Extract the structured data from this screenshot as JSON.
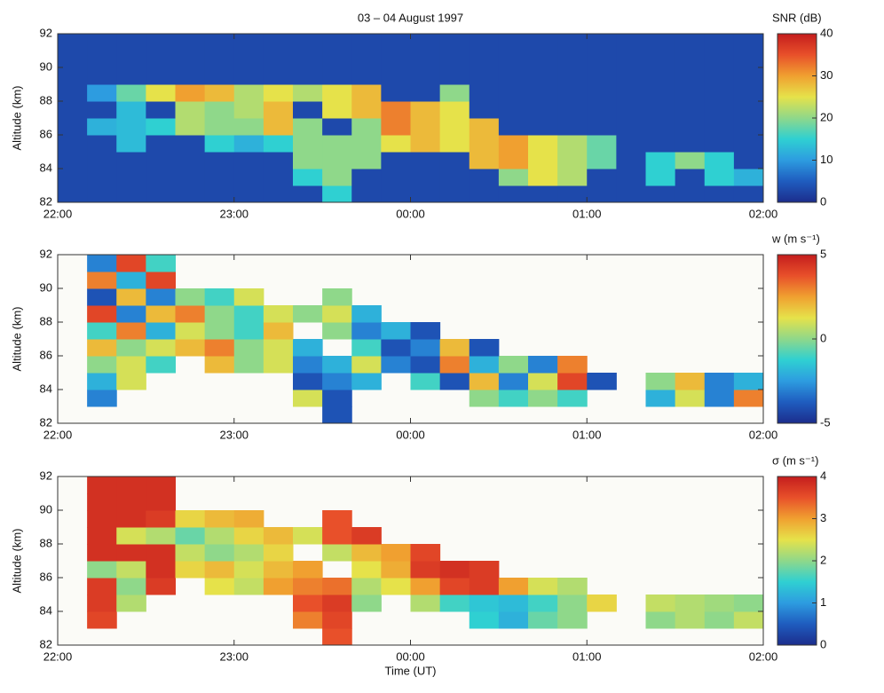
{
  "chart_data": [
    {
      "type": "heatmap",
      "title": "03 – 04 August 1997",
      "y_label": "Altitude (km)",
      "x": [
        0,
        10,
        20,
        30,
        40,
        50,
        60,
        70,
        80,
        90,
        100,
        110,
        120,
        130,
        140,
        150,
        160,
        170,
        180,
        190,
        200,
        210,
        220,
        230
      ],
      "xlim": [
        0,
        240
      ],
      "xticks": [
        {
          "value": 0,
          "label": "22:00"
        },
        {
          "value": 60,
          "label": "23:00"
        },
        {
          "value": 120,
          "label": "00:00"
        },
        {
          "value": 180,
          "label": "01:00"
        },
        {
          "value": 240,
          "label": "02:00"
        }
      ],
      "y": [
        82,
        83,
        84,
        85,
        86,
        87,
        88,
        89,
        90,
        91
      ],
      "ylim": [
        82,
        92
      ],
      "yticks": [
        82,
        84,
        86,
        88,
        90,
        92
      ],
      "z": [
        [
          3,
          3,
          3,
          3,
          3,
          3,
          3,
          3,
          3,
          15,
          3,
          3,
          3,
          3,
          3,
          3,
          3,
          3,
          3,
          3,
          3,
          3,
          3,
          3
        ],
        [
          3,
          3,
          3,
          3,
          3,
          3,
          3,
          3,
          15,
          20,
          3,
          3,
          3,
          3,
          3,
          20,
          25,
          22,
          3,
          3,
          15,
          3,
          15,
          12
        ],
        [
          3,
          3,
          3,
          3,
          3,
          3,
          3,
          3,
          20,
          20,
          20,
          3,
          3,
          3,
          28,
          30,
          25,
          22,
          18,
          3,
          15,
          20,
          15,
          3
        ],
        [
          3,
          3,
          13,
          3,
          3,
          15,
          12,
          15,
          20,
          20,
          20,
          25,
          28,
          25,
          28,
          30,
          25,
          22,
          18,
          3,
          3,
          3,
          3,
          3
        ],
        [
          3,
          12,
          13,
          15,
          22,
          20,
          20,
          28,
          20,
          3,
          20,
          32,
          28,
          25,
          28,
          3,
          3,
          3,
          3,
          3,
          3,
          3,
          3,
          3
        ],
        [
          3,
          3,
          13,
          3,
          22,
          20,
          22,
          28,
          3,
          25,
          28,
          32,
          28,
          25,
          3,
          3,
          3,
          3,
          3,
          3,
          3,
          3,
          3,
          3
        ],
        [
          3,
          10,
          18,
          25,
          30,
          28,
          22,
          25,
          22,
          25,
          28,
          3,
          3,
          20,
          3,
          3,
          3,
          3,
          3,
          3,
          3,
          3,
          3,
          3
        ],
        [
          3,
          3,
          3,
          3,
          3,
          3,
          3,
          3,
          3,
          3,
          3,
          3,
          3,
          3,
          3,
          3,
          3,
          3,
          3,
          3,
          3,
          3,
          3,
          3
        ],
        [
          3,
          3,
          3,
          3,
          3,
          3,
          3,
          3,
          3,
          3,
          3,
          3,
          3,
          3,
          3,
          3,
          3,
          3,
          3,
          3,
          3,
          3,
          3,
          3
        ],
        [
          3,
          3,
          3,
          3,
          3,
          3,
          3,
          3,
          3,
          3,
          3,
          3,
          3,
          3,
          3,
          3,
          3,
          3,
          3,
          3,
          3,
          3,
          3,
          3
        ]
      ],
      "colorbar": {
        "label": "SNR (dB)",
        "zlim": [
          0,
          40
        ],
        "zticks": [
          0,
          10,
          20,
          30,
          40
        ]
      },
      "colormap": [
        "#1c2d8c",
        "#1f5cbf",
        "#2d9ce0",
        "#2fd0d2",
        "#8fd88a",
        "#e6e24a",
        "#f0a030",
        "#e8502a",
        "#c41d1d"
      ]
    },
    {
      "type": "heatmap",
      "y_label": "Altitude (km)",
      "x": [
        0,
        10,
        20,
        30,
        40,
        50,
        60,
        70,
        80,
        90,
        100,
        110,
        120,
        130,
        140,
        150,
        160,
        170,
        180,
        190,
        200,
        210,
        220,
        230
      ],
      "xlim": [
        0,
        240
      ],
      "xticks": [
        {
          "value": 0,
          "label": "22:00"
        },
        {
          "value": 60,
          "label": "23:00"
        },
        {
          "value": 120,
          "label": "00:00"
        },
        {
          "value": 180,
          "label": "01:00"
        },
        {
          "value": 240,
          "label": "02:00"
        }
      ],
      "y": [
        82,
        83,
        84,
        85,
        86,
        87,
        88,
        89,
        90,
        91
      ],
      "ylim": [
        82,
        92
      ],
      "yticks": [
        82,
        84,
        86,
        88,
        90,
        92
      ],
      "z": [
        [
          null,
          null,
          null,
          null,
          null,
          null,
          null,
          null,
          null,
          -4,
          null,
          null,
          null,
          null,
          null,
          null,
          null,
          null,
          null,
          null,
          null,
          null,
          null,
          null
        ],
        [
          null,
          -3,
          null,
          null,
          null,
          null,
          null,
          null,
          1,
          -4,
          null,
          null,
          null,
          null,
          0,
          -1,
          0,
          -1,
          null,
          null,
          -2,
          1,
          -3,
          3
        ],
        [
          null,
          -2,
          1,
          null,
          null,
          null,
          null,
          null,
          -4,
          -3,
          -2,
          null,
          -1,
          -4,
          2,
          -3,
          1,
          4,
          -4,
          null,
          0,
          2,
          -3,
          -2
        ],
        [
          null,
          0,
          1,
          -1,
          null,
          2,
          0,
          1,
          -3,
          -2,
          1,
          -3,
          -4,
          3,
          -2,
          0,
          -3,
          3,
          null,
          null,
          null,
          null,
          null,
          null
        ],
        [
          null,
          2,
          0,
          1,
          2,
          3,
          0,
          1,
          -2,
          null,
          -1,
          -4,
          -3,
          2,
          -4,
          null,
          null,
          null,
          null,
          null,
          null,
          null,
          null,
          null
        ],
        [
          null,
          -1,
          3,
          -2,
          1,
          0,
          -1,
          2,
          null,
          0,
          -3,
          -2,
          -4,
          null,
          null,
          null,
          null,
          null,
          null,
          null,
          null,
          null,
          null,
          null
        ],
        [
          null,
          4,
          -3,
          2,
          3,
          0,
          -1,
          1,
          0,
          1,
          -2,
          null,
          null,
          null,
          null,
          null,
          null,
          null,
          null,
          null,
          null,
          null,
          null,
          null
        ],
        [
          null,
          -4,
          2,
          -3,
          0,
          -1,
          1,
          null,
          null,
          0,
          null,
          null,
          null,
          null,
          null,
          null,
          null,
          null,
          null,
          null,
          null,
          null,
          null,
          null
        ],
        [
          null,
          3,
          -2,
          4,
          null,
          null,
          null,
          null,
          null,
          null,
          null,
          null,
          null,
          null,
          null,
          null,
          null,
          null,
          null,
          null,
          null,
          null,
          null,
          null
        ],
        [
          null,
          -3,
          4,
          -1,
          null,
          null,
          null,
          null,
          null,
          null,
          null,
          null,
          null,
          null,
          null,
          null,
          null,
          null,
          null,
          null,
          null,
          null,
          null,
          null
        ]
      ],
      "colorbar": {
        "label": "w (m s⁻¹)",
        "zlim": [
          -5,
          5
        ],
        "zticks": [
          -5,
          0,
          5
        ]
      },
      "colormap": [
        "#1c2d8c",
        "#1f5cbf",
        "#2d9ce0",
        "#2fd0d2",
        "#8fd88a",
        "#e6e24a",
        "#f0a030",
        "#e8502a",
        "#c41d1d"
      ]
    },
    {
      "type": "heatmap",
      "y_label": "Altitude (km)",
      "x_label": "Time (UT)",
      "x": [
        0,
        10,
        20,
        30,
        40,
        50,
        60,
        70,
        80,
        90,
        100,
        110,
        120,
        130,
        140,
        150,
        160,
        170,
        180,
        190,
        200,
        210,
        220,
        230
      ],
      "xlim": [
        0,
        240
      ],
      "xticks": [
        {
          "value": 0,
          "label": "22:00"
        },
        {
          "value": 60,
          "label": "23:00"
        },
        {
          "value": 120,
          "label": "00:00"
        },
        {
          "value": 180,
          "label": "01:00"
        },
        {
          "value": 240,
          "label": "02:00"
        }
      ],
      "y": [
        82,
        83,
        84,
        85,
        86,
        87,
        88,
        89,
        90,
        91
      ],
      "ylim": [
        82,
        92
      ],
      "yticks": [
        82,
        84,
        86,
        88,
        90,
        92
      ],
      "z": [
        [
          null,
          null,
          null,
          null,
          null,
          null,
          null,
          null,
          null,
          3.5,
          null,
          null,
          null,
          null,
          null,
          null,
          null,
          null,
          null,
          null,
          null,
          null,
          null,
          null
        ],
        [
          null,
          3.6,
          null,
          null,
          null,
          null,
          null,
          null,
          3.2,
          3.6,
          null,
          null,
          null,
          null,
          1.5,
          1.2,
          1.8,
          2,
          null,
          null,
          2,
          2.2,
          2,
          2.3
        ],
        [
          null,
          3.7,
          2.2,
          null,
          null,
          null,
          null,
          null,
          3.5,
          3.7,
          2,
          null,
          2.2,
          1.6,
          1.4,
          1.3,
          1.6,
          2,
          2.6,
          null,
          2.3,
          2.2,
          2.1,
          2
        ],
        [
          null,
          3.7,
          2,
          3.7,
          null,
          2.5,
          2.3,
          3,
          3.2,
          3.3,
          2.2,
          2.5,
          3,
          3.6,
          3.7,
          3,
          2.4,
          2.2,
          null,
          null,
          null,
          null,
          null,
          null
        ],
        [
          null,
          2,
          2.3,
          3.8,
          2.6,
          2.8,
          2.4,
          2.8,
          3,
          null,
          2.5,
          2.9,
          3.7,
          3.8,
          3.7,
          null,
          null,
          null,
          null,
          null,
          null,
          null,
          null,
          null
        ],
        [
          null,
          3.8,
          3.8,
          3.8,
          2.3,
          2,
          2.2,
          2.6,
          null,
          2.3,
          2.8,
          3,
          3.6,
          null,
          null,
          null,
          null,
          null,
          null,
          null,
          null,
          null,
          null,
          null
        ],
        [
          null,
          3.8,
          2.4,
          2.2,
          1.8,
          2.2,
          2.6,
          2.8,
          2.4,
          3.5,
          3.7,
          null,
          null,
          null,
          null,
          null,
          null,
          null,
          null,
          null,
          null,
          null,
          null,
          null
        ],
        [
          null,
          3.8,
          3.8,
          3.7,
          2.6,
          2.8,
          2.9,
          null,
          null,
          3.5,
          null,
          null,
          null,
          null,
          null,
          null,
          null,
          null,
          null,
          null,
          null,
          null,
          null,
          null
        ],
        [
          null,
          3.8,
          3.8,
          3.8,
          null,
          null,
          null,
          null,
          null,
          null,
          null,
          null,
          null,
          null,
          null,
          null,
          null,
          null,
          null,
          null,
          null,
          null,
          null,
          null
        ],
        [
          null,
          3.8,
          3.8,
          3.8,
          null,
          null,
          null,
          null,
          null,
          null,
          null,
          null,
          null,
          null,
          null,
          null,
          null,
          null,
          null,
          null,
          null,
          null,
          null,
          null
        ]
      ],
      "colorbar": {
        "label": "σ (m s⁻¹)",
        "zlim": [
          0,
          4
        ],
        "zticks": [
          0,
          1,
          2,
          3,
          4
        ]
      },
      "colormap": [
        "#1c2d8c",
        "#1f5cbf",
        "#2d9ce0",
        "#2fd0d2",
        "#8fd88a",
        "#e6e24a",
        "#f0a030",
        "#e8502a",
        "#c41d1d"
      ]
    }
  ]
}
